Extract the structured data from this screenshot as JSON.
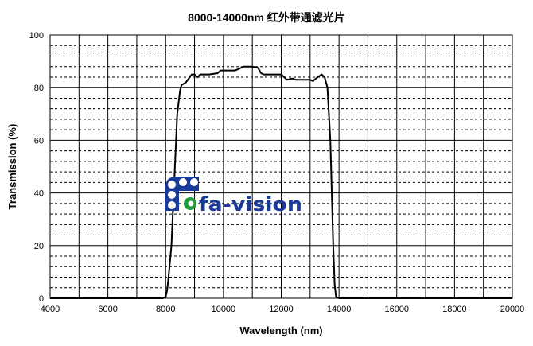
{
  "chart_data": {
    "type": "line",
    "title": "8000-14000nm 红外带通滤光片",
    "xlabel": "Wavelength (nm)",
    "ylabel": "Transmission (%)",
    "xlim": [
      4000,
      20000
    ],
    "ylim": [
      0,
      100
    ],
    "xticks": [
      4000,
      6000,
      8000,
      10000,
      12000,
      14000,
      16000,
      18000,
      20000
    ],
    "yticks": [
      0,
      20,
      40,
      60,
      80,
      100
    ],
    "grid": "major solid every 1000 nm / 20%, minor dashed every 4%",
    "logo_text": "fa-vision",
    "logo_colors": {
      "blue": "#1a3a9a",
      "green": "#1f9a3a"
    },
    "series": [
      {
        "x": [
          4000,
          7900,
          8000,
          8050,
          8100,
          8200,
          8300,
          8400,
          8500,
          8550,
          8700,
          8800,
          8900,
          9000,
          9100,
          9200,
          9500,
          9800,
          9900,
          10400,
          10500,
          10700,
          11000,
          11200,
          11300,
          11400,
          12000,
          12200,
          12400,
          12500,
          13000,
          13100,
          13200,
          13400,
          13500,
          13600,
          13700,
          13800,
          13850,
          13900,
          14000,
          20000
        ],
        "y": [
          0,
          0,
          0.5,
          3,
          8,
          20,
          45,
          70,
          79,
          81,
          82,
          83.5,
          85,
          85,
          84,
          85,
          85,
          85.5,
          86.5,
          86.5,
          87,
          88,
          88,
          87.5,
          85.5,
          85,
          85,
          83,
          83.5,
          83,
          83,
          82.5,
          83.5,
          85,
          84,
          80,
          60,
          20,
          5,
          0.5,
          0,
          0
        ]
      }
    ]
  }
}
